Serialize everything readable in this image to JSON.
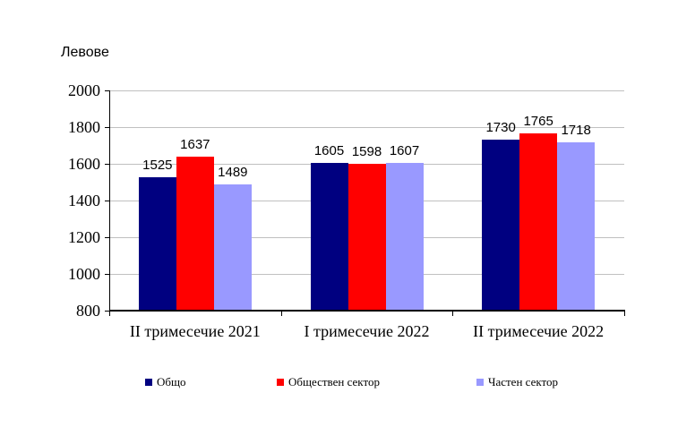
{
  "title": "Левове",
  "chart_data": {
    "type": "bar",
    "title": "Левове",
    "categories": [
      "II тримесечие 2021",
      "I тримесечие 2022",
      "II тримесечие 2022"
    ],
    "series": [
      {
        "name": "Общо",
        "color": "#000080",
        "values": [
          1525,
          1605,
          1730
        ]
      },
      {
        "name": "Обществен сектор",
        "color": "#FF0000",
        "values": [
          1637,
          1598,
          1765
        ]
      },
      {
        "name": "Частен сектор",
        "color": "#9999FF",
        "values": [
          1489,
          1607,
          1718
        ]
      }
    ],
    "xlabel": "",
    "ylabel": "Левове",
    "ylim": [
      800,
      2000
    ],
    "yticks": [
      800,
      1000,
      1200,
      1400,
      1600,
      1800,
      2000
    ],
    "grid": true,
    "legend_position": "bottom",
    "colors": {
      "gridline": "#C0C0C0",
      "axis": "#000000",
      "background": "#FFFFFF",
      "text": "#000000"
    }
  }
}
